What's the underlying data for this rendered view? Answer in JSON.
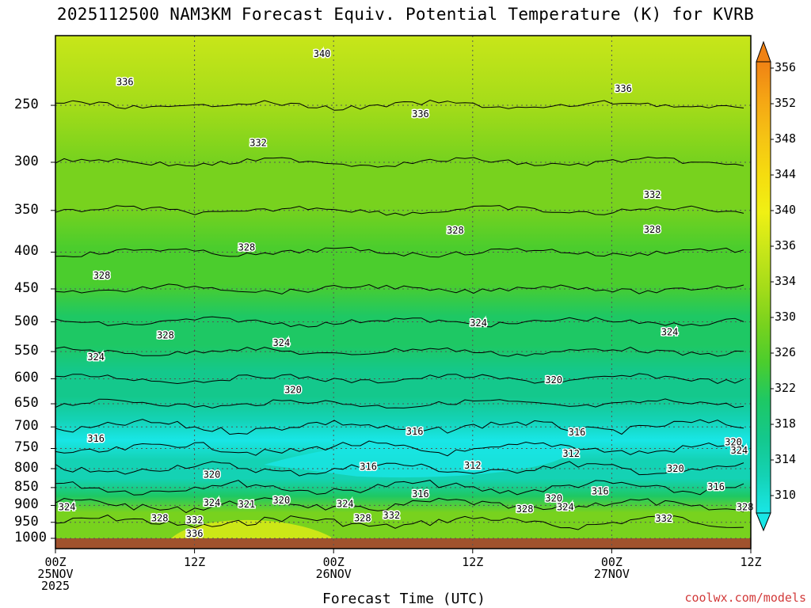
{
  "chart_data": {
    "type": "contour",
    "title": "2025112500 NAM3KM Forecast Equiv. Potential Temperature (K) for KVRB",
    "xlabel": "Forecast Time (UTC)",
    "ylabel": "",
    "credit": "coolwx.com/models",
    "y_axis": {
      "unit": "hPa",
      "scale": "log-pressure",
      "inverted": true,
      "range": [
        1000,
        200
      ],
      "ticks": [
        250,
        300,
        350,
        400,
        450,
        500,
        550,
        600,
        650,
        700,
        750,
        800,
        850,
        900,
        950,
        1000
      ]
    },
    "x_axis": {
      "range_hours": [
        0,
        60
      ],
      "ticks": [
        {
          "hour": 0,
          "lines": [
            "00Z",
            "25NOV",
            "2025"
          ]
        },
        {
          "hour": 12,
          "lines": [
            "12Z"
          ]
        },
        {
          "hour": 24,
          "lines": [
            "00Z",
            "26NOV"
          ]
        },
        {
          "hour": 36,
          "lines": [
            "12Z"
          ]
        },
        {
          "hour": 48,
          "lines": [
            "00Z",
            "27NOV"
          ]
        },
        {
          "hour": 60,
          "lines": [
            "12Z"
          ]
        }
      ]
    },
    "grid": true,
    "colorbar": {
      "position": "right",
      "levels": [
        310,
        314,
        318,
        322,
        326,
        330,
        334,
        336,
        340,
        344,
        348,
        352,
        356
      ],
      "colors": [
        "#19e6e6",
        "#14d2b4",
        "#14c88c",
        "#1ec864",
        "#4bcd2d",
        "#78d21e",
        "#a5dc19",
        "#c8e619",
        "#f0f014",
        "#f5dc0f",
        "#f5c314",
        "#f5a514",
        "#f08214"
      ]
    },
    "profile": [
      {
        "p": 1000,
        "theta_e": 334
      },
      {
        "p": 950,
        "theta_e": 334
      },
      {
        "p": 900,
        "theta_e": 326
      },
      {
        "p": 850,
        "theta_e": 318
      },
      {
        "p": 800,
        "theta_e": 318
      },
      {
        "p": 750,
        "theta_e": 314
      },
      {
        "p": 700,
        "theta_e": 318
      },
      {
        "p": 650,
        "theta_e": 320
      },
      {
        "p": 600,
        "theta_e": 322
      },
      {
        "p": 550,
        "theta_e": 325
      },
      {
        "p": 500,
        "theta_e": 326
      },
      {
        "p": 450,
        "theta_e": 328
      },
      {
        "p": 400,
        "theta_e": 330
      },
      {
        "p": 350,
        "theta_e": 331
      },
      {
        "p": 300,
        "theta_e": 333
      },
      {
        "p": 250,
        "theta_e": 336
      },
      {
        "p": 200,
        "theta_e": 340
      }
    ],
    "contour_labels": [
      {
        "text": "340",
        "hour": 23.0,
        "p": 212
      },
      {
        "text": "336",
        "hour": 6.0,
        "p": 232
      },
      {
        "text": "336",
        "hour": 31.5,
        "p": 257
      },
      {
        "text": "336",
        "hour": 49.0,
        "p": 237
      },
      {
        "text": "332",
        "hour": 17.5,
        "p": 282
      },
      {
        "text": "332",
        "hour": 51.5,
        "p": 333
      },
      {
        "text": "328",
        "hour": 16.5,
        "p": 394
      },
      {
        "text": "328",
        "hour": 34.5,
        "p": 373
      },
      {
        "text": "328",
        "hour": 51.5,
        "p": 372
      },
      {
        "text": "328",
        "hour": 4.0,
        "p": 431
      },
      {
        "text": "328",
        "hour": 9.5,
        "p": 522
      },
      {
        "text": "324",
        "hour": 36.5,
        "p": 502
      },
      {
        "text": "324",
        "hour": 53.0,
        "p": 517
      },
      {
        "text": "324",
        "hour": 19.5,
        "p": 535
      },
      {
        "text": "324",
        "hour": 3.5,
        "p": 560
      },
      {
        "text": "320",
        "hour": 43.0,
        "p": 602
      },
      {
        "text": "320",
        "hour": 20.5,
        "p": 622
      },
      {
        "text": "316",
        "hour": 31.0,
        "p": 710
      },
      {
        "text": "316",
        "hour": 45.0,
        "p": 712
      },
      {
        "text": "316",
        "hour": 3.5,
        "p": 727
      },
      {
        "text": "312",
        "hour": 44.5,
        "p": 762
      },
      {
        "text": "312",
        "hour": 36.0,
        "p": 792
      },
      {
        "text": "316",
        "hour": 27.0,
        "p": 795
      },
      {
        "text": "320",
        "hour": 13.5,
        "p": 815
      },
      {
        "text": "320",
        "hour": 53.5,
        "p": 800
      },
      {
        "text": "316",
        "hour": 31.5,
        "p": 868
      },
      {
        "text": "316",
        "hour": 47.0,
        "p": 860
      },
      {
        "text": "316",
        "hour": 57.0,
        "p": 848
      },
      {
        "text": "320",
        "hour": 43.0,
        "p": 880
      },
      {
        "text": "320",
        "hour": 19.5,
        "p": 885
      },
      {
        "text": "320",
        "hour": 58.5,
        "p": 735
      },
      {
        "text": "324",
        "hour": 59.0,
        "p": 755
      },
      {
        "text": "324",
        "hour": 1.0,
        "p": 905
      },
      {
        "text": "324",
        "hour": 13.5,
        "p": 892
      },
      {
        "text": "324",
        "hour": 25.0,
        "p": 896
      },
      {
        "text": "324",
        "hour": 44.0,
        "p": 905
      },
      {
        "text": "328",
        "hour": 9.0,
        "p": 938
      },
      {
        "text": "328",
        "hour": 26.5,
        "p": 937
      },
      {
        "text": "328",
        "hour": 40.5,
        "p": 910
      },
      {
        "text": "328",
        "hour": 59.5,
        "p": 905
      },
      {
        "text": "332",
        "hour": 12.0,
        "p": 943
      },
      {
        "text": "332",
        "hour": 29.0,
        "p": 929
      },
      {
        "text": "332",
        "hour": 52.5,
        "p": 939
      },
      {
        "text": "336",
        "hour": 12.0,
        "p": 985
      },
      {
        "text": "321",
        "hour": 16.5,
        "p": 897
      }
    ]
  }
}
